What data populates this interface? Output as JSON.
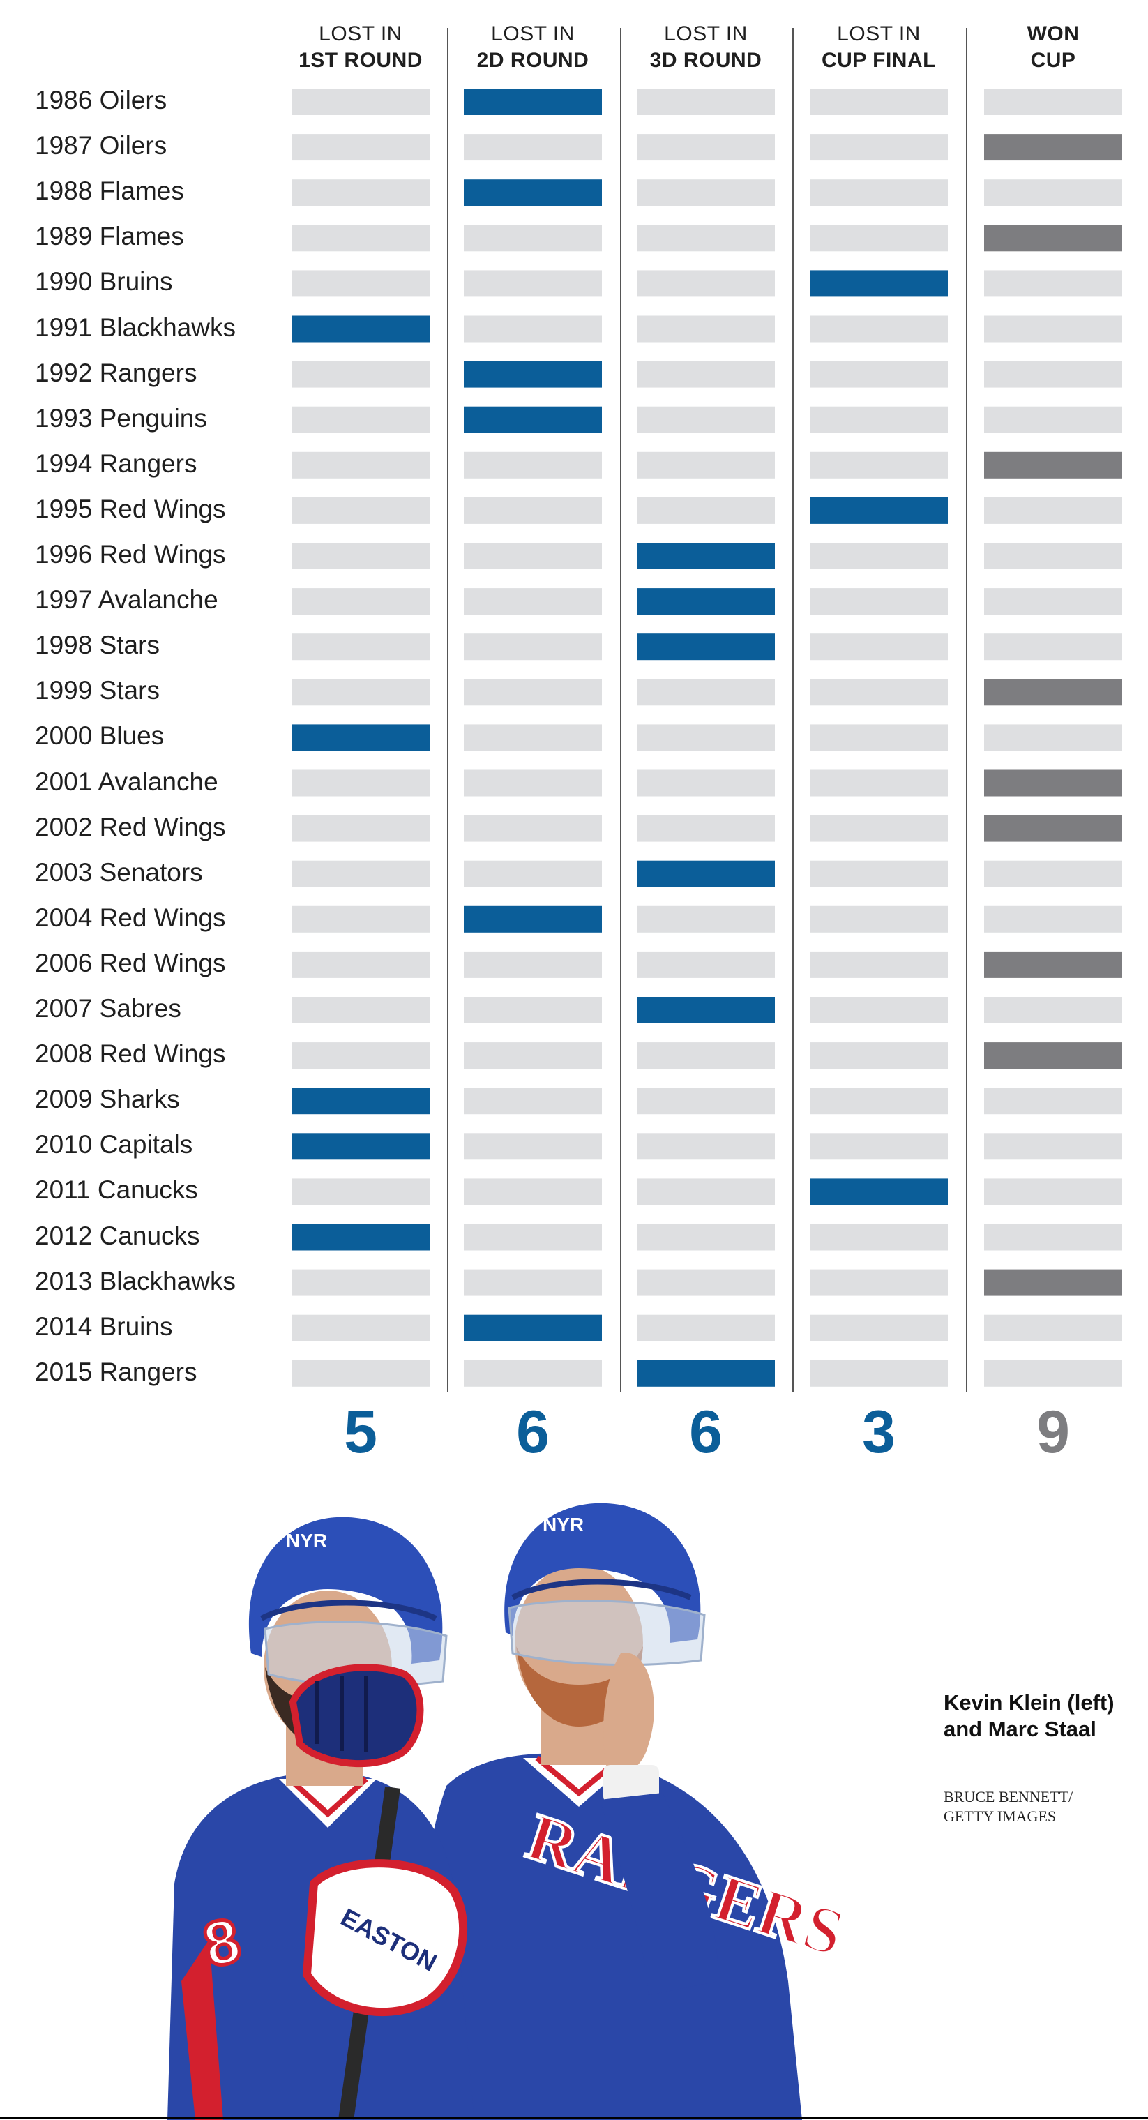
{
  "chart_data": {
    "type": "table",
    "columns": [
      {
        "key": "r1",
        "line1": "LOST IN",
        "line2": "1ST ROUND",
        "total": "5",
        "fill": "#0b5e99"
      },
      {
        "key": "r2",
        "line1": "LOST IN",
        "line2": "2D ROUND",
        "total": "6",
        "fill": "#0b5e99"
      },
      {
        "key": "r3",
        "line1": "LOST IN",
        "line2": "3D ROUND",
        "total": "6",
        "fill": "#0b5e99"
      },
      {
        "key": "final",
        "line1": "LOST IN",
        "line2": "CUP FINAL",
        "total": "3",
        "fill": "#0b5e99"
      },
      {
        "key": "won",
        "line1": "WON",
        "line2": "CUP",
        "total": "9",
        "fill": "#7d7d80"
      }
    ],
    "rows": [
      {
        "label": "1986 Oilers",
        "result": 1
      },
      {
        "label": "1987 Oilers",
        "result": 4
      },
      {
        "label": "1988 Flames",
        "result": 1
      },
      {
        "label": "1989 Flames",
        "result": 4
      },
      {
        "label": "1990 Bruins",
        "result": 3
      },
      {
        "label": "1991 Blackhawks",
        "result": 0
      },
      {
        "label": "1992 Rangers",
        "result": 1
      },
      {
        "label": "1993 Penguins",
        "result": 1
      },
      {
        "label": "1994 Rangers",
        "result": 4
      },
      {
        "label": "1995 Red Wings",
        "result": 3
      },
      {
        "label": "1996 Red Wings",
        "result": 2
      },
      {
        "label": "1997 Avalanche",
        "result": 2
      },
      {
        "label": "1998 Stars",
        "result": 2
      },
      {
        "label": "1999 Stars",
        "result": 4
      },
      {
        "label": "2000 Blues",
        "result": 0
      },
      {
        "label": "2001 Avalanche",
        "result": 4
      },
      {
        "label": "2002 Red Wings",
        "result": 4
      },
      {
        "label": "2003 Senators",
        "result": 2
      },
      {
        "label": "2004 Red Wings",
        "result": 1
      },
      {
        "label": "2006 Red Wings",
        "result": 4
      },
      {
        "label": "2007 Sabres",
        "result": 2
      },
      {
        "label": "2008 Red Wings",
        "result": 4
      },
      {
        "label": "2009 Sharks",
        "result": 0
      },
      {
        "label": "2010 Capitals",
        "result": 0
      },
      {
        "label": "2011 Canucks",
        "result": 3
      },
      {
        "label": "2012 Canucks",
        "result": 0
      },
      {
        "label": "2013 Blackhawks",
        "result": 4
      },
      {
        "label": "2014 Bruins",
        "result": 1
      },
      {
        "label": "2015 Rangers",
        "result": 2
      }
    ],
    "empty_cell_color": "#dedfe1",
    "divider_color": "#555555"
  },
  "photo": {
    "caption": "Kevin Klein (left) and Marc Staal",
    "credit": "BRUCE BENNETT/ GETTY IMAGES",
    "left_helmet_text": "NYR",
    "right_helmet_text": "NYR",
    "left_jersey_number": "8",
    "left_jersey_text": "RA",
    "right_jersey_text": "RANGERS",
    "glove_text": "EASTON",
    "colors": {
      "jersey_blue": "#2a47a8",
      "helmet_blue": "#2c4fb8",
      "red": "#d3202e",
      "skin": "#d9a98b",
      "beard_dark": "#3a2a22",
      "beard_red": "#b5673d"
    }
  }
}
